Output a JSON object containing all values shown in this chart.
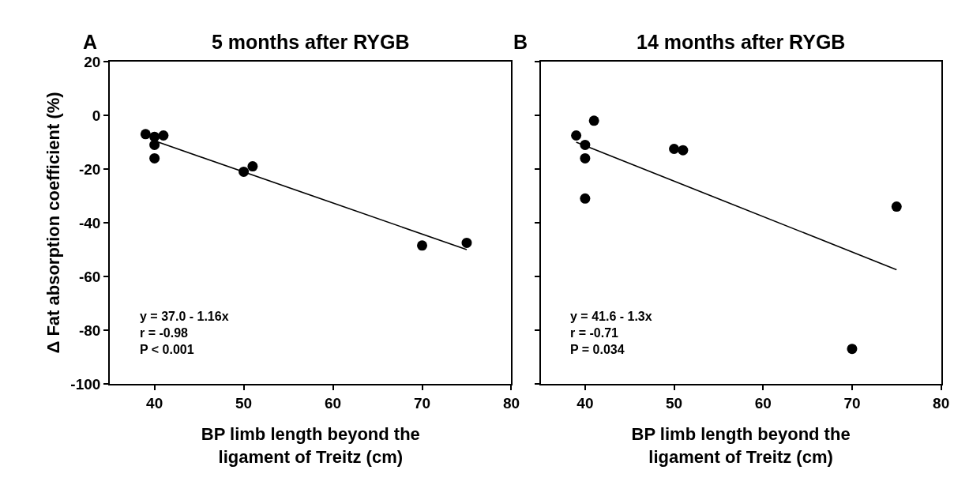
{
  "chart_data": [
    {
      "type": "scatter",
      "title": "5 months after RYGB",
      "xlabel": "BP limb length beyond the\nligament of Treitz (cm)",
      "ylabel": "Δ Fat absorption coefficient (%)",
      "annotations": [
        "A",
        "y = 37.0 - 1.16x\nr = -0.98\nP < 0.001"
      ],
      "series": [
        {
          "color": "#000000",
          "marker": "circle",
          "x": [
            39,
            40,
            41,
            40,
            40,
            50,
            51,
            70,
            75
          ],
          "values": [
            -7,
            -8,
            -7.5,
            -11,
            -16,
            -21,
            -19,
            -48.5,
            -47.5
          ]
        },
        {
          "type": "line",
          "color": "#000000",
          "marker": "none",
          "line_style": "solid",
          "x": [
            40,
            75
          ],
          "values": [
            -9.5,
            -50
          ]
        }
      ],
      "xlim": [
        35,
        80
      ],
      "xticks": [
        40,
        50,
        60,
        70,
        80
      ],
      "ylim": [
        -100,
        20
      ],
      "yticks": [
        -100,
        -80,
        -60,
        -40,
        -20,
        0,
        20
      ]
    },
    {
      "type": "scatter",
      "title": "14 months after RYGB",
      "xlabel": "BP limb length beyond the\nligament of Treitz (cm)",
      "annotations": [
        "B",
        "y = 41.6 - 1.3x\nr = -0.71\nP = 0.034"
      ],
      "series": [
        {
          "color": "#000000",
          "marker": "circle",
          "x": [
            39,
            41,
            40,
            40,
            40,
            50,
            51,
            70,
            75
          ],
          "values": [
            -7.5,
            -2,
            -11,
            -16,
            -31,
            -12.5,
            -13,
            -87,
            -34
          ]
        },
        {
          "type": "line",
          "color": "#000000",
          "marker": "none",
          "line_style": "solid",
          "x": [
            39,
            75
          ],
          "values": [
            -10,
            -57.5
          ]
        }
      ],
      "xlim": [
        35,
        80
      ],
      "xticks": [
        40,
        50,
        60,
        70,
        80
      ],
      "ylim": [
        -100,
        20
      ],
      "yticks": [
        -100,
        -80,
        -60,
        -40,
        -20,
        0,
        20
      ],
      "tick_labels": "x"
    }
  ]
}
